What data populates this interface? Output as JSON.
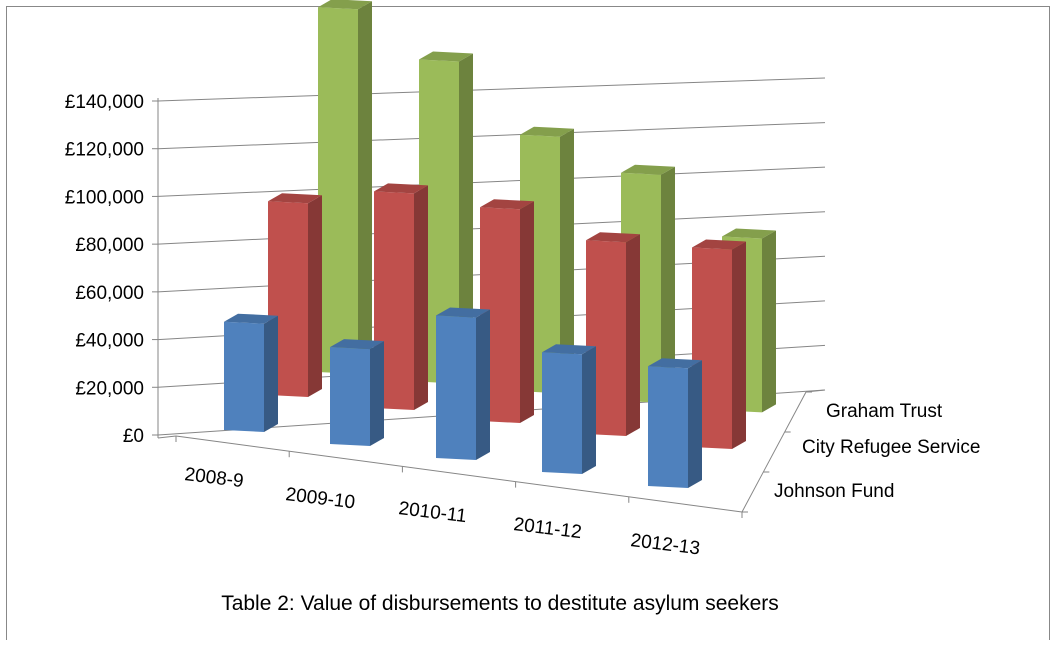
{
  "caption": "Table 2: Value of disbursements to destitute asylum seekers",
  "chart_data": {
    "type": "bar",
    "variant": "3d-column",
    "categories": [
      "2008-9",
      "2009-10",
      "2010-11",
      "2011-12",
      "2012-13"
    ],
    "series": [
      {
        "name": "Johnson Fund",
        "color": "#4F81BD",
        "values": [
          38000,
          34000,
          50000,
          42000,
          42000
        ]
      },
      {
        "name": "City Refugee Service",
        "color": "#C0504D",
        "values": [
          68000,
          76000,
          75000,
          68000,
          70000
        ]
      },
      {
        "name": "Graham Trust",
        "color": "#9BBB59",
        "values": [
          128000,
          113000,
          90000,
          80000,
          61000
        ]
      }
    ],
    "y_ticks": [
      "£0",
      "£20,000",
      "£40,000",
      "£60,000",
      "£80,000",
      "£100,000",
      "£120,000",
      "£140,000"
    ],
    "ylim": [
      0,
      140000
    ],
    "grid": true,
    "legend": "depth-axis labels at right",
    "title": "",
    "xlabel": "",
    "ylabel": ""
  }
}
